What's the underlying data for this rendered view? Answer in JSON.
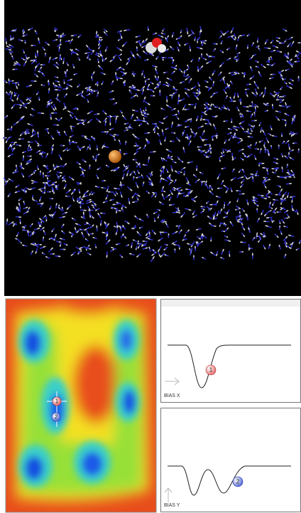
{
  "surface": {
    "markers": [
      "1",
      "2"
    ]
  },
  "panels": {
    "bias_x": {
      "label": "BIAS X",
      "marker": "1"
    },
    "bias_y": {
      "label": "BIAS Y",
      "marker": "2"
    }
  }
}
